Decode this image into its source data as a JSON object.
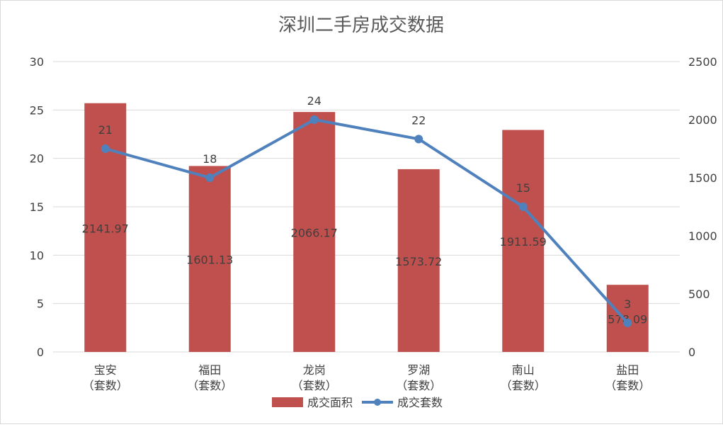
{
  "chart_data": {
    "type": "bar+line",
    "title": "深圳二手房成交数据",
    "categories": [
      {
        "line1": "宝安",
        "line2": "（套数）"
      },
      {
        "line1": "福田",
        "line2": "（套数）"
      },
      {
        "line1": "龙岗",
        "line2": "（套数）"
      },
      {
        "line1": "罗湖",
        "line2": "（套数）"
      },
      {
        "line1": "南山",
        "line2": "（套数）"
      },
      {
        "line1": "盐田",
        "line2": "（套数）"
      }
    ],
    "bar_series": {
      "name": "成交面积",
      "axis": "right",
      "values": [
        2141.97,
        1601.13,
        2066.17,
        1573.72,
        1911.59,
        578.09
      ],
      "labels": [
        "2141.97",
        "1601.13",
        "2066.17",
        "1573.72",
        "1911.59",
        "578.09"
      ],
      "color": "#C0504D"
    },
    "line_series": {
      "name": "成交套数",
      "axis": "left",
      "values": [
        21,
        18,
        24,
        22,
        15,
        3
      ],
      "labels": [
        "21",
        "18",
        "24",
        "22",
        "15",
        "3"
      ],
      "color": "#4F81BD"
    },
    "left_axis": {
      "min": 0,
      "max": 30,
      "ticks": [
        "0",
        "5",
        "10",
        "15",
        "20",
        "25",
        "30"
      ]
    },
    "right_axis": {
      "min": 0,
      "max": 2500,
      "ticks": [
        "0",
        "500",
        "1000",
        "1500",
        "2000",
        "2500"
      ]
    },
    "grid": true,
    "legend_position": "bottom",
    "text_color": "#404040",
    "grid_color": "#D9D9D9"
  }
}
